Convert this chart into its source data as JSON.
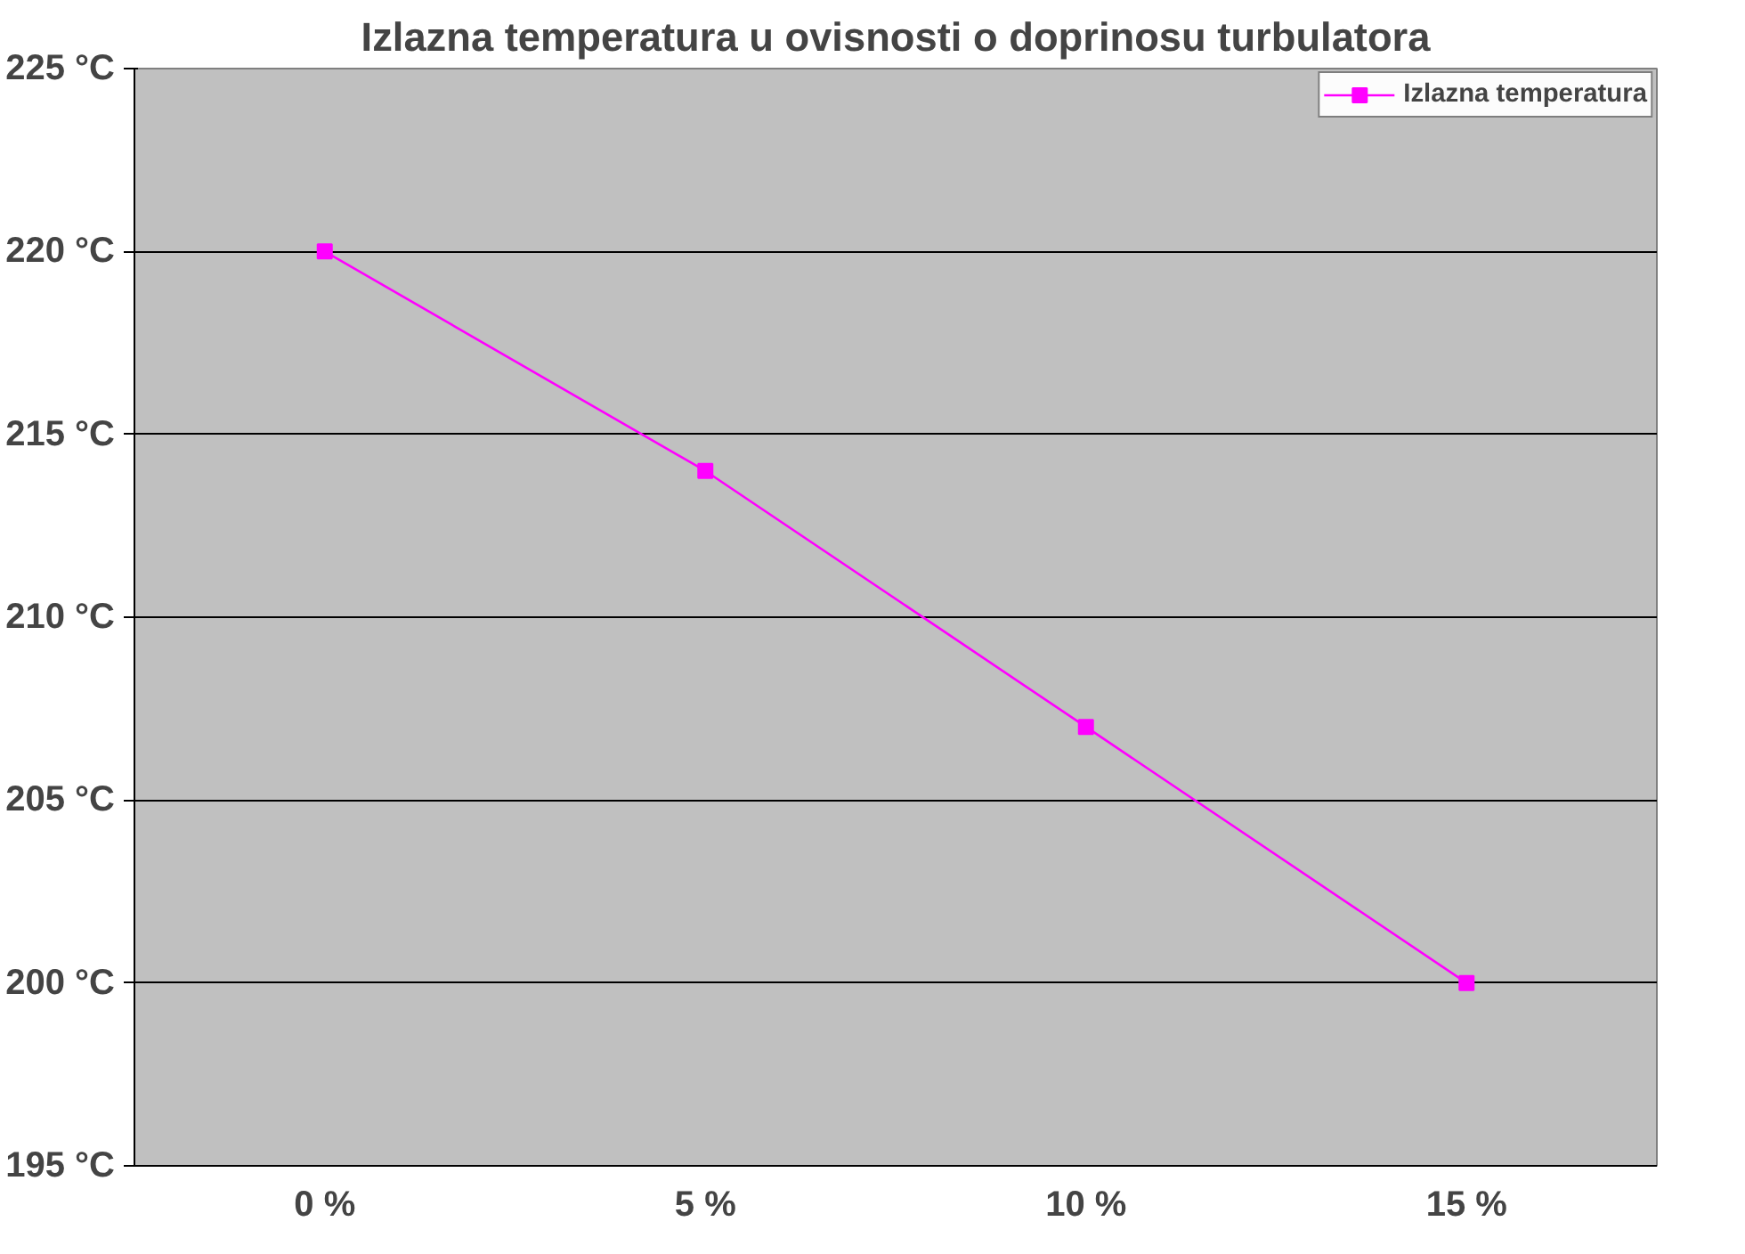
{
  "chart_data": {
    "type": "line",
    "title": "Izlazna temperatura u ovisnosti o doprinosu turbulatora",
    "categories": [
      "0 %",
      "5 %",
      "10 %",
      "15 %"
    ],
    "series": [
      {
        "name": "Izlazna temperatura",
        "color": "#ff00ff",
        "values": [
          220,
          214,
          207,
          200
        ]
      }
    ],
    "ylim": [
      195,
      225
    ],
    "yticks": [
      {
        "value": 195,
        "label": "195 °C"
      },
      {
        "value": 200,
        "label": "200 °C"
      },
      {
        "value": 205,
        "label": "205 °C"
      },
      {
        "value": 210,
        "label": "210 °C"
      },
      {
        "value": 215,
        "label": "215 °C"
      },
      {
        "value": 220,
        "label": "220 °C"
      },
      {
        "value": 225,
        "label": "225 °C"
      }
    ],
    "grid": "y",
    "legend": "top right",
    "marker": "square",
    "line_style": "solid"
  }
}
